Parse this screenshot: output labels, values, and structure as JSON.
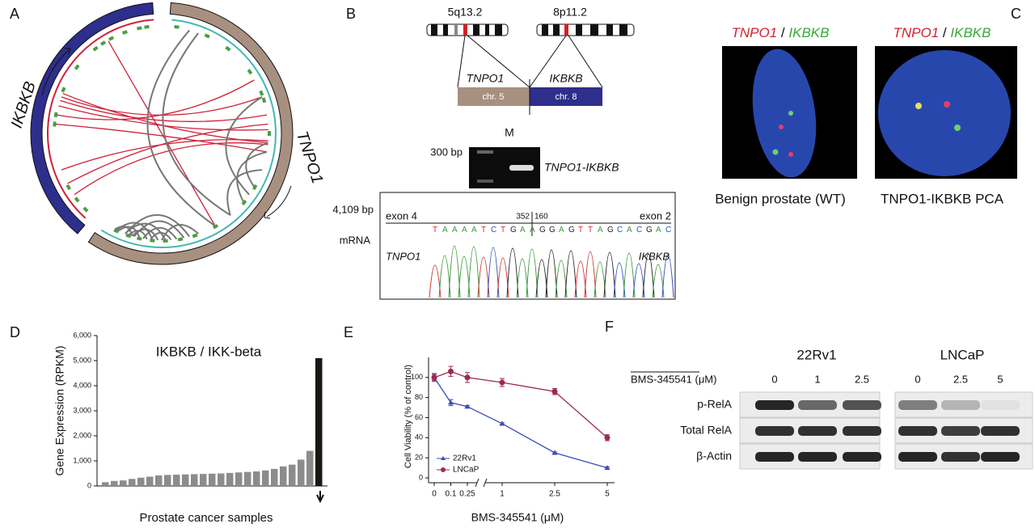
{
  "panels": {
    "A": {
      "letter": "A",
      "gene1": "IKBKB",
      "gene2": "TNPO1"
    },
    "B": {
      "letter": "B",
      "band1": "5q13.2",
      "band2": "8p11.2",
      "gene1": "TNPO1",
      "gene2": "IKBKB",
      "chr1": "chr. 5",
      "chr2": "chr. 8",
      "gel_marker": "M",
      "gel_size": "300 bp",
      "gel_label": "TNPO1-IKBKB",
      "mrna_length": "4,109 bp",
      "mrna": "mRNA",
      "exon_left": "exon 4",
      "exon_right": "exon 2",
      "pos_left": "352",
      "pos_right": "160",
      "sequence": "TAAAATCTGAAGGAGTTAGCACGAC",
      "trace_left": "TNPO1",
      "trace_right": "IKBKB"
    },
    "C": {
      "letter": "C",
      "probe1": "TNPO1",
      "sep": "/",
      "probe2": "IKBKB",
      "caption1": "Benign prostate (WT)",
      "caption2": "TNPO1-IKBKB PCA"
    },
    "D": {
      "letter": "D",
      "chart": {
        "type": "bar",
        "title": "IKBKB / IKK-beta",
        "x_label": "Prostate cancer samples",
        "y_label": "Gene Expression (RPKM)",
        "values": [
          150,
          200,
          220,
          280,
          330,
          370,
          420,
          440,
          450,
          460,
          470,
          480,
          490,
          500,
          520,
          540,
          560,
          580,
          620,
          680,
          780,
          850,
          1050,
          1400,
          5100
        ],
        "colors": [
          "#8c8c8c",
          "#8c8c8c",
          "#8c8c8c",
          "#8c8c8c",
          "#8c8c8c",
          "#8c8c8c",
          "#8c8c8c",
          "#8c8c8c",
          "#8c8c8c",
          "#8c8c8c",
          "#8c8c8c",
          "#8c8c8c",
          "#8c8c8c",
          "#8c8c8c",
          "#8c8c8c",
          "#8c8c8c",
          "#8c8c8c",
          "#8c8c8c",
          "#8c8c8c",
          "#8c8c8c",
          "#8c8c8c",
          "#8c8c8c",
          "#8c8c8c",
          "#8c8c8c",
          "#141a10"
        ],
        "ylim": [
          0,
          6000
        ],
        "yticks": [
          0,
          {
            "value": 1000,
            "label": "1,000"
          },
          {
            "value": 2000,
            "label": "2,000"
          },
          {
            "value": 3000,
            "label": "3,000"
          },
          {
            "value": 4000,
            "label": "4,000"
          },
          {
            "value": 5000,
            "label": "5,000"
          },
          {
            "value": 6000,
            "label": "6,000"
          }
        ]
      }
    },
    "E": {
      "letter": "E",
      "chart": {
        "type": "line",
        "x_label": "BMS-345541 (μM)",
        "y_label": "Cell Viability (% of control)",
        "categories": [
          "0",
          "0.1",
          "0.25",
          "1",
          "2.5",
          "5"
        ],
        "axis_break_after": 2,
        "series": [
          {
            "name": "22Rv1",
            "color": "#3a4fb4",
            "marker": "triangle",
            "values": [
              100,
              75,
              71,
              54,
              25,
              10
            ],
            "errors": [
              4,
              3,
              1,
              1,
              1,
              1
            ]
          },
          {
            "name": "LNCaP",
            "color": "#9c2a50",
            "marker": "circle",
            "values": [
              100,
              106,
              100,
              95,
              86,
              40
            ],
            "errors": [
              3,
              5,
              5,
              4,
              3,
              3
            ]
          }
        ],
        "ylim": [
          0,
          120
        ],
        "yticks": [
          0,
          20,
          40,
          60,
          80,
          100
        ],
        "legend": "lower left"
      }
    },
    "F": {
      "letter": "F",
      "line1": "22Rv1",
      "line2": "LNCaP",
      "drug": "BMS-345541 (μM)",
      "doses1": [
        "0",
        "1",
        "2.5"
      ],
      "doses2": [
        "0",
        "2.5",
        "5"
      ],
      "rows": [
        "p-RelA",
        "Total RelA",
        "β-Actin"
      ]
    }
  }
}
